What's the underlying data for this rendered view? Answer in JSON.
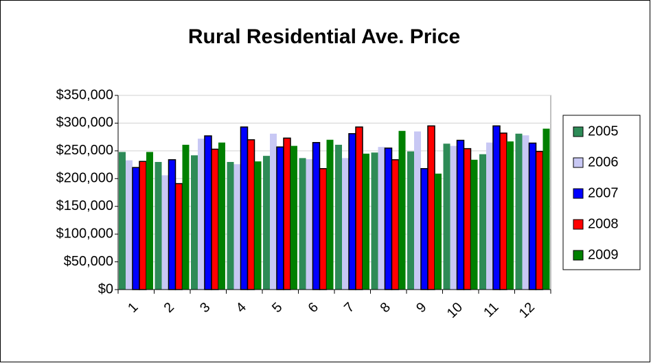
{
  "chart_data": {
    "type": "bar",
    "title": "Rural Residential Ave. Price",
    "categories": [
      "1",
      "2",
      "3",
      "4",
      "5",
      "6",
      "7",
      "8",
      "9",
      "10",
      "11",
      "12"
    ],
    "series": [
      {
        "name": "2005",
        "color": "#2e8b57",
        "values": [
          248000,
          230000,
          242000,
          230000,
          241000,
          237000,
          261000,
          247000,
          249000,
          263000,
          244000,
          281000
        ]
      },
      {
        "name": "2006",
        "color": "#c8c8f4",
        "values": [
          233000,
          206000,
          272000,
          226000,
          281000,
          235000,
          237000,
          257000,
          285000,
          259000,
          265000,
          278000
        ]
      },
      {
        "name": "2007",
        "color": "#0000ff",
        "values": [
          220000,
          234000,
          277000,
          293000,
          257000,
          265000,
          281000,
          255000,
          218000,
          269000,
          295000,
          264000
        ]
      },
      {
        "name": "2008",
        "color": "#ff0000",
        "values": [
          231000,
          191000,
          253000,
          270000,
          273000,
          218000,
          293000,
          234000,
          295000,
          254000,
          282000,
          249000
        ]
      },
      {
        "name": "2009",
        "color": "#008000",
        "values": [
          248000,
          261000,
          265000,
          231000,
          259000,
          270000,
          245000,
          286000,
          209000,
          234000,
          267000,
          290000
        ]
      }
    ],
    "ylim": [
      0,
      350000
    ],
    "yticks": [
      {
        "value": 0,
        "label": "$0"
      },
      {
        "value": 50000,
        "label": "$50,000"
      },
      {
        "value": 100000,
        "label": "$100,000"
      },
      {
        "value": 150000,
        "label": "$150,000"
      },
      {
        "value": 200000,
        "label": "$200,000"
      },
      {
        "value": 250000,
        "label": "$250,000"
      },
      {
        "value": 300000,
        "label": "$300,000"
      },
      {
        "value": 350000,
        "label": "$350,000"
      }
    ],
    "grid": true,
    "legend": "right"
  }
}
